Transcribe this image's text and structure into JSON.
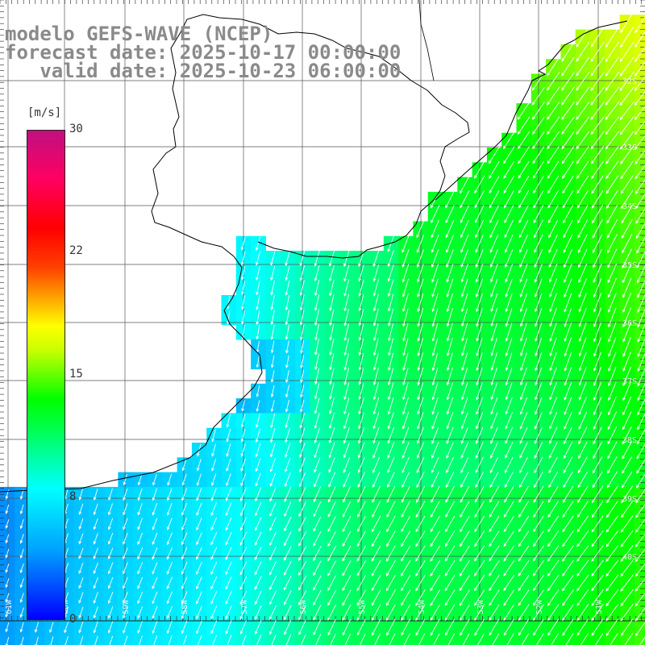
{
  "title": {
    "line1": "modelo GEFS-WAVE (NCEP)",
    "line2": "forecast date: 2025-10-17 00:00:00",
    "line3": "   valid date: 2025-10-23 06:00:00"
  },
  "colorbar": {
    "unit": "[m/s]",
    "ticks": [
      "30",
      "22",
      "15",
      "8",
      "0"
    ],
    "min": 0,
    "max": 30
  },
  "lat_labels": [
    "32S",
    "33S",
    "34S",
    "35S",
    "36S",
    "37S",
    "38S",
    "39S",
    "40S"
  ],
  "lon_labels": [
    "61W",
    "60W",
    "59W",
    "58W",
    "57W",
    "56W",
    "55W",
    "54W",
    "53W",
    "52W",
    "51W"
  ],
  "colors": {
    "land": "#ffffff",
    "grid": "#555555",
    "coast": "#000000",
    "arrow": "#ffffff"
  }
}
